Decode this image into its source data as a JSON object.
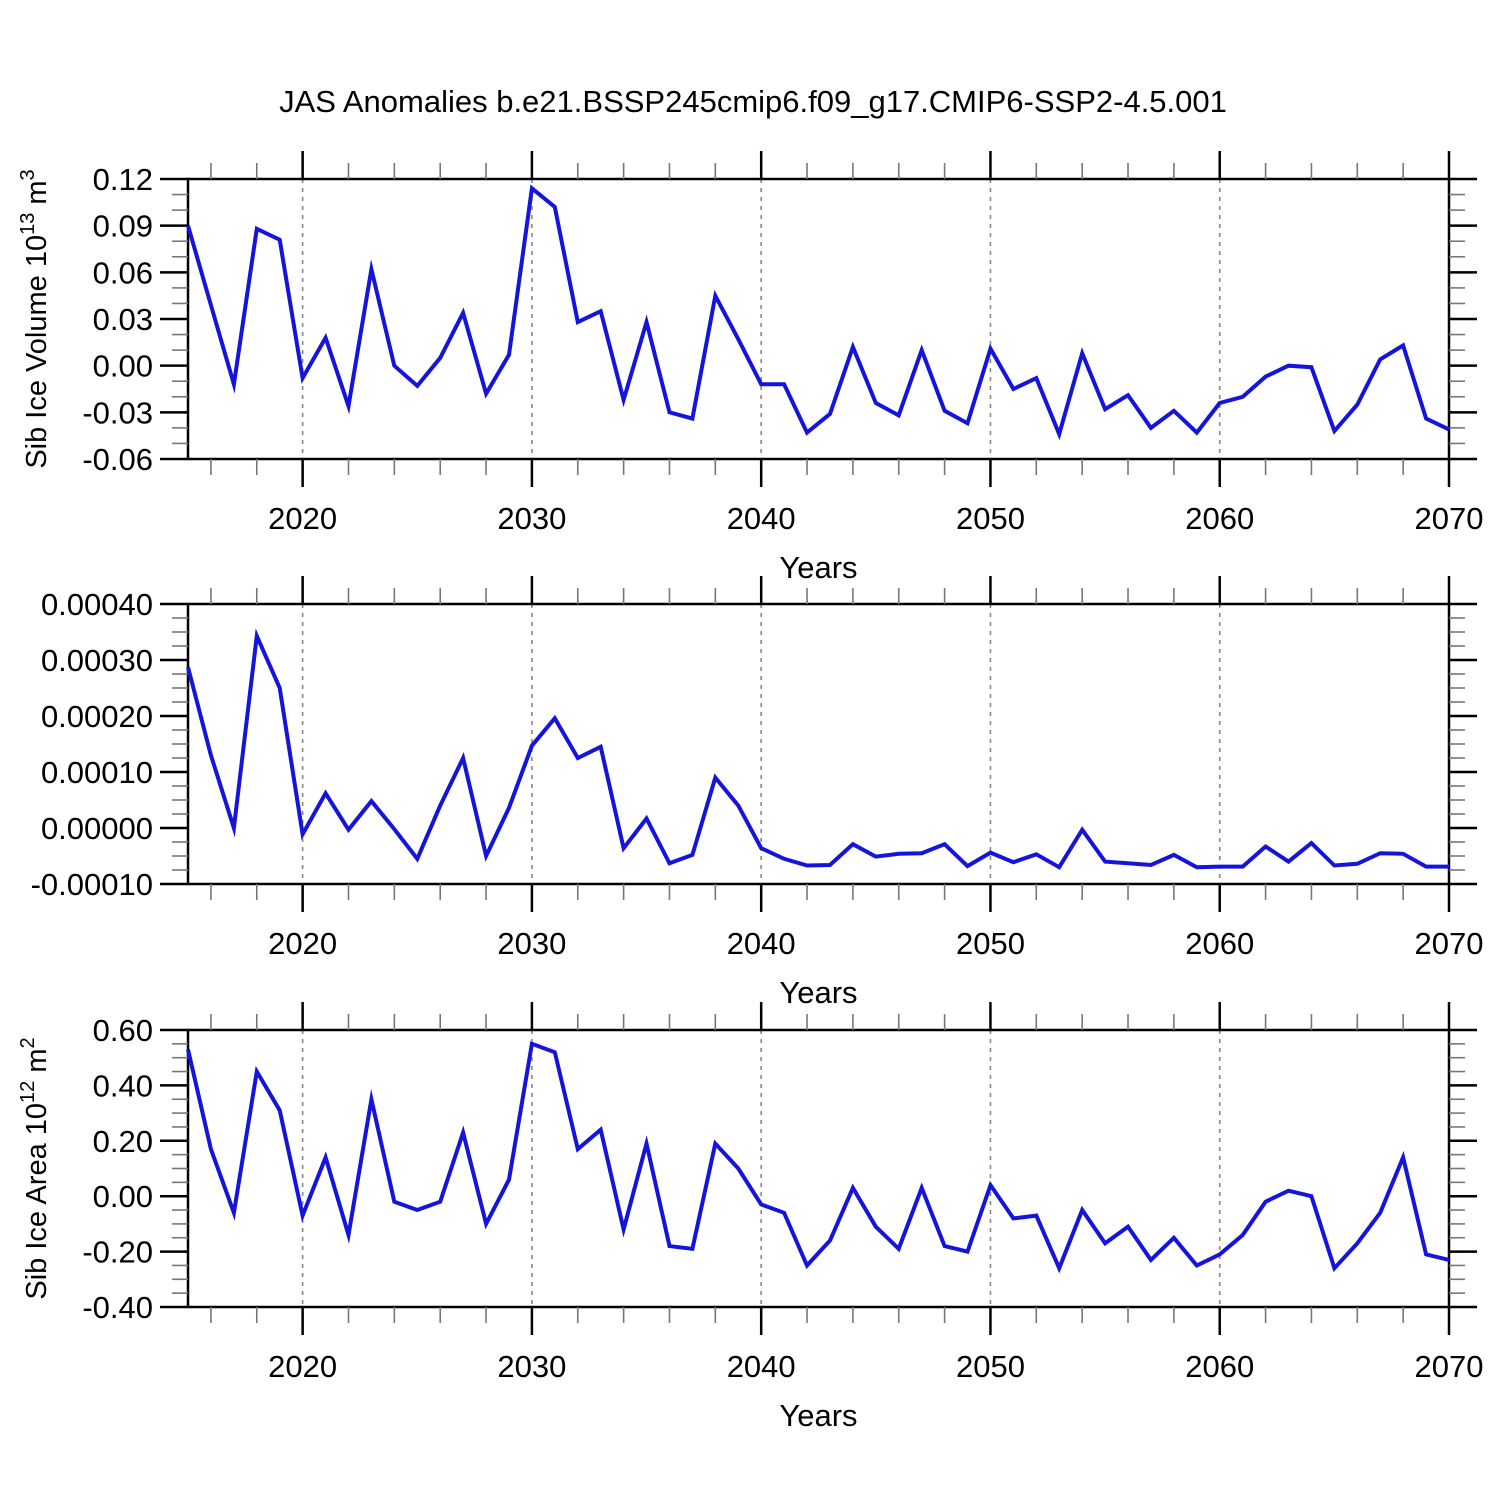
{
  "title": "JAS Anomalies b.e21.BSSP245cmip6.f09_g17.CMIP6-SSP2-4.5.001",
  "colors": {
    "line": "#1414dc",
    "grid": "#888888",
    "axis": "#000000",
    "minor_tick": "#777777"
  },
  "years": [
    2015,
    2016,
    2017,
    2018,
    2019,
    2020,
    2021,
    2022,
    2023,
    2024,
    2025,
    2026,
    2027,
    2028,
    2029,
    2030,
    2031,
    2032,
    2033,
    2034,
    2035,
    2036,
    2037,
    2038,
    2039,
    2040,
    2041,
    2042,
    2043,
    2044,
    2045,
    2046,
    2047,
    2048,
    2049,
    2050,
    2051,
    2052,
    2053,
    2054,
    2055,
    2056,
    2057,
    2058,
    2059,
    2060,
    2061,
    2062,
    2063,
    2064,
    2065,
    2066,
    2067,
    2068,
    2069,
    2070
  ],
  "chart_data": [
    {
      "type": "line",
      "ylabel": "Sib Ice Volume 10^{13} m^{3}",
      "xlabel": "Years",
      "xlim": [
        2015,
        2070
      ],
      "xticks": [
        2020,
        2030,
        2040,
        2050,
        2060,
        2070
      ],
      "xtick_labels": [
        "2020",
        "2030",
        "2040",
        "2050",
        "2060",
        "2070"
      ],
      "xminor_step": 2,
      "grid_x": [
        2020,
        2030,
        2040,
        2050,
        2060
      ],
      "ylim": [
        -0.06,
        0.12
      ],
      "yticks": [
        0.12,
        0.09,
        0.06,
        0.03,
        0.0,
        -0.03,
        -0.06
      ],
      "ytick_labels": [
        "0.12",
        "0.09",
        "0.06",
        "0.03",
        "0.00",
        "-0.03",
        "-0.06"
      ],
      "yminor_step": 0.01,
      "values": [
        0.09,
        0.039,
        -0.012,
        0.088,
        0.081,
        -0.008,
        0.018,
        -0.026,
        0.062,
        0.0,
        -0.013,
        0.005,
        0.034,
        -0.018,
        0.007,
        0.114,
        0.102,
        0.028,
        0.035,
        -0.022,
        0.028,
        -0.03,
        -0.034,
        0.045,
        0.017,
        -0.012,
        -0.012,
        -0.043,
        -0.031,
        0.012,
        -0.024,
        -0.032,
        0.01,
        -0.029,
        -0.037,
        0.011,
        -0.015,
        -0.008,
        -0.044,
        0.008,
        -0.028,
        -0.019,
        -0.04,
        -0.029,
        -0.043,
        -0.024,
        -0.02,
        -0.007,
        0.0,
        -0.001,
        -0.042,
        -0.025,
        0.004,
        0.013,
        -0.034,
        -0.041
      ]
    },
    {
      "type": "line",
      "ylabel": "",
      "xlabel": "Years",
      "xlim": [
        2015,
        2070
      ],
      "xticks": [
        2020,
        2030,
        2040,
        2050,
        2060,
        2070
      ],
      "xtick_labels": [
        "2020",
        "2030",
        "2040",
        "2050",
        "2060",
        "2070"
      ],
      "xminor_step": 2,
      "grid_x": [
        2020,
        2030,
        2040,
        2050,
        2060
      ],
      "ylim": [
        -0.0001,
        0.0004
      ],
      "yticks": [
        0.0004,
        0.0003,
        0.0002,
        0.0001,
        0.0,
        -0.0001
      ],
      "ytick_labels": [
        "0.00040",
        "0.00030",
        "0.00020",
        "0.00010",
        "0.00000",
        "-0.00010"
      ],
      "yminor_step": 2.5e-05,
      "values": [
        0.000287,
        0.00013,
        0.0,
        0.000343,
        0.00025,
        -1.1e-05,
        6.2e-05,
        -3e-06,
        4.8e-05,
        -2e-06,
        -5.5e-05,
        4e-05,
        0.000125,
        -5e-05,
        3.6e-05,
        0.000147,
        0.000196,
        0.000125,
        0.000145,
        -3.6e-05,
        1.7e-05,
        -6.3e-05,
        -4.8e-05,
        9e-05,
        4e-05,
        -3.6e-05,
        -5.5e-05,
        -6.7e-05,
        -6.6e-05,
        -2.9e-05,
        -5.1e-05,
        -4.6e-05,
        -4.5e-05,
        -2.9e-05,
        -6.8e-05,
        -4.4e-05,
        -6.1e-05,
        -4.7e-05,
        -7e-05,
        -3e-06,
        -6e-05,
        -6.3e-05,
        -6.6e-05,
        -4.8e-05,
        -7e-05,
        -6.9e-05,
        -6.9e-05,
        -3.3e-05,
        -6e-05,
        -2.7e-05,
        -6.7e-05,
        -6.4e-05,
        -4.5e-05,
        -4.6e-05,
        -6.9e-05,
        -6.9e-05
      ]
    },
    {
      "type": "line",
      "ylabel": "Sib Ice Area 10^{12} m^{2}",
      "xlabel": "Years",
      "xlim": [
        2015,
        2070
      ],
      "xticks": [
        2020,
        2030,
        2040,
        2050,
        2060,
        2070
      ],
      "xtick_labels": [
        "2020",
        "2030",
        "2040",
        "2050",
        "2060",
        "2070"
      ],
      "xminor_step": 2,
      "grid_x": [
        2020,
        2030,
        2040,
        2050,
        2060
      ],
      "ylim": [
        -0.4,
        0.6
      ],
      "yticks": [
        0.6,
        0.4,
        0.2,
        0.0,
        -0.2,
        -0.4
      ],
      "ytick_labels": [
        "0.60",
        "0.40",
        "0.20",
        "0.00",
        "-0.20",
        "-0.40"
      ],
      "yminor_step": 0.05,
      "values": [
        0.53,
        0.17,
        -0.06,
        0.45,
        0.31,
        -0.07,
        0.14,
        -0.14,
        0.35,
        -0.02,
        -0.05,
        -0.02,
        0.23,
        -0.1,
        0.06,
        0.55,
        0.52,
        0.17,
        0.24,
        -0.12,
        0.19,
        -0.18,
        -0.19,
        0.19,
        0.1,
        -0.03,
        -0.06,
        -0.25,
        -0.16,
        0.03,
        -0.11,
        -0.19,
        0.03,
        -0.18,
        -0.2,
        0.04,
        -0.08,
        -0.07,
        -0.26,
        -0.05,
        -0.17,
        -0.11,
        -0.23,
        -0.15,
        -0.25,
        -0.21,
        -0.14,
        -0.02,
        0.02,
        0.0,
        -0.26,
        -0.17,
        -0.06,
        0.14,
        -0.21,
        -0.23
      ]
    }
  ]
}
